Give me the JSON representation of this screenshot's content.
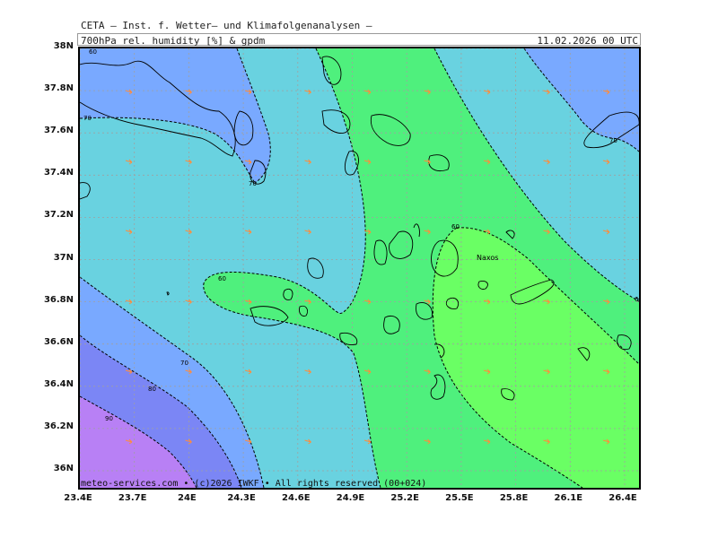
{
  "header": {
    "title": "CETA — Inst. f. Wetter— und Klimafolgenanalysen —",
    "subtitle": "700hPa rel. humidity [%] & gpdm",
    "timestamp": "11.02.2026 00 UTC"
  },
  "footer": {
    "copyright": "meteo-services.com • (c)2026 IWKF • All rights reserved (00+024)"
  },
  "map": {
    "place_label": "Naxos",
    "colors": {
      "rh_60_70": "#4ff07d",
      "rh_50_60": "#6aff64",
      "rh_70_80": "#69d2e0",
      "rh_80_85": "#79a9ff",
      "rh_85_90": "#7b86f5",
      "rh_90_up": "#b880f5",
      "wind_arrow": "#ff8c3c",
      "grid": "#a0a0a0"
    },
    "contour_labels": [
      "70",
      "70",
      "70",
      "60",
      "60",
      "60",
      "70",
      "80",
      "90",
      "60"
    ]
  },
  "axes": {
    "y_ticks": [
      "38N",
      "37.8N",
      "37.6N",
      "37.4N",
      "37.2N",
      "37N",
      "36.8N",
      "36.6N",
      "36.4N",
      "36.2N",
      "36N"
    ],
    "x_ticks": [
      "23.4E",
      "23.7E",
      "24E",
      "24.3E",
      "24.6E",
      "24.9E",
      "25.2E",
      "25.5E",
      "25.8E",
      "26.1E",
      "26.4E"
    ]
  }
}
